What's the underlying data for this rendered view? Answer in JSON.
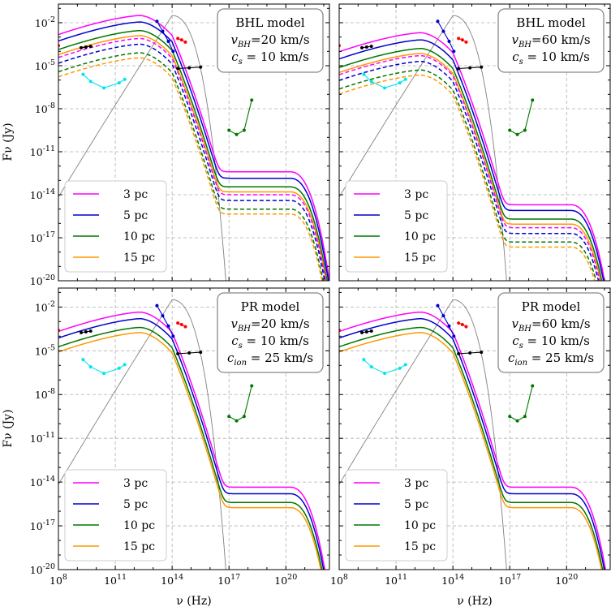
{
  "figure": {
    "xlabel": "ν (Hz)",
    "ylabel": "Fν (Jy)",
    "legend": [
      "3 pc",
      "5 pc",
      "10 pc",
      "15 pc"
    ],
    "colors": {
      "3 pc": "#ff00ff",
      "5 pc": "#0000cc",
      "10 pc": "#007700",
      "15 pc": "#ff9900",
      "blackbody": "#808080"
    }
  },
  "chart_data": [
    {
      "type": "line",
      "panel": "top-left",
      "box": {
        "line1": "BHL model",
        "line2": "vBH=20 km/s",
        "line3": "cs = 10 km/s",
        "line4": ""
      },
      "xscale": "log",
      "yscale": "log",
      "xlim_log10": [
        8,
        22.3
      ],
      "ylim_log10": [
        -20,
        -0.7
      ],
      "xticks": [
        "10^8",
        "10^11",
        "10^14",
        "10^17",
        "10^20"
      ],
      "yticks": [
        "10^-20",
        "10^-17",
        "10^-14",
        "10^-11",
        "10^-8",
        "10^-5",
        "10^-2"
      ],
      "series": [
        {
          "name": "3 pc",
          "style": "solid",
          "peak_log10": -1.5,
          "plateau_log10": -12.4
        },
        {
          "name": "5 pc",
          "style": "solid",
          "peak_log10": -1.95,
          "plateau_log10": -12.85
        },
        {
          "name": "10 pc",
          "style": "solid",
          "peak_log10": -2.55,
          "plateau_log10": -13.45
        },
        {
          "name": "15 pc",
          "style": "solid",
          "peak_log10": -2.9,
          "plateau_log10": -13.8
        },
        {
          "name": "3 pc",
          "style": "dashed",
          "peak_log10": -3.1,
          "plateau_log10": -14.0
        },
        {
          "name": "5 pc",
          "style": "dashed",
          "peak_log10": -3.5,
          "plateau_log10": -14.4
        },
        {
          "name": "10 pc",
          "style": "dashed",
          "peak_log10": -4.1,
          "plateau_log10": -15.0
        },
        {
          "name": "15 pc",
          "style": "dashed",
          "peak_log10": -4.45,
          "plateau_log10": -15.35
        }
      ],
      "blackbody_peak": [
        14.0,
        -1.5
      ]
    },
    {
      "type": "line",
      "panel": "top-right",
      "box": {
        "line1": "BHL model",
        "line2": "vBH=60 km/s",
        "line3": "cs = 10 km/s",
        "line4": ""
      },
      "xscale": "log",
      "yscale": "log",
      "xlim_log10": [
        8,
        22.3
      ],
      "ylim_log10": [
        -20,
        -0.7
      ],
      "xticks": [
        "10^8",
        "10^11",
        "10^14",
        "10^17",
        "10^20"
      ],
      "yticks": [],
      "series": [
        {
          "name": "3 pc",
          "style": "solid",
          "peak_log10": -2.7,
          "plateau_log10": -14.7
        },
        {
          "name": "5 pc",
          "style": "solid",
          "peak_log10": -3.2,
          "plateau_log10": -15.1
        },
        {
          "name": "10 pc",
          "style": "solid",
          "peak_log10": -3.8,
          "plateau_log10": -15.7
        },
        {
          "name": "15 pc",
          "style": "solid",
          "peak_log10": -4.15,
          "plateau_log10": -16.05
        },
        {
          "name": "3 pc",
          "style": "dashed",
          "peak_log10": -4.3,
          "plateau_log10": -16.3
        },
        {
          "name": "5 pc",
          "style": "dashed",
          "peak_log10": -4.7,
          "plateau_log10": -16.7
        },
        {
          "name": "10 pc",
          "style": "dashed",
          "peak_log10": -5.3,
          "plateau_log10": -17.3
        },
        {
          "name": "15 pc",
          "style": "dashed",
          "peak_log10": -5.65,
          "plateau_log10": -17.65
        }
      ],
      "blackbody_peak": [
        14.0,
        -1.5
      ]
    },
    {
      "type": "line",
      "panel": "bottom-left",
      "box": {
        "line1": "PR model",
        "line2": "vBH=20 km/s",
        "line3": "cs = 10 km/s",
        "line4": "cion = 25 km/s"
      },
      "xscale": "log",
      "yscale": "log",
      "xlim_log10": [
        8,
        22.3
      ],
      "ylim_log10": [
        -20,
        -0.7
      ],
      "xticks": [
        "10^8",
        "10^11",
        "10^14",
        "10^17",
        "10^20"
      ],
      "yticks": [
        "10^-20",
        "10^-17",
        "10^-14",
        "10^-11",
        "10^-8",
        "10^-5",
        "10^-2"
      ],
      "series": [
        {
          "name": "3 pc",
          "style": "solid",
          "peak_log10": -2.35,
          "plateau_log10": -14.35
        },
        {
          "name": "5 pc",
          "style": "solid",
          "peak_log10": -2.8,
          "plateau_log10": -14.8
        },
        {
          "name": "10 pc",
          "style": "solid",
          "peak_log10": -3.4,
          "plateau_log10": -15.4
        },
        {
          "name": "15 pc",
          "style": "solid",
          "peak_log10": -3.75,
          "plateau_log10": -15.75
        }
      ],
      "blackbody_peak": [
        14.0,
        -1.5
      ]
    },
    {
      "type": "line",
      "panel": "bottom-right",
      "box": {
        "line1": "PR model",
        "line2": "vBH=60 km/s",
        "line3": "cs = 10 km/s",
        "line4": "cion = 25 km/s"
      },
      "xscale": "log",
      "yscale": "log",
      "xlim_log10": [
        8,
        22.3
      ],
      "ylim_log10": [
        -20,
        -0.7
      ],
      "xticks": [
        "10^8",
        "10^11",
        "10^14",
        "10^17",
        "10^20"
      ],
      "yticks": [],
      "series": [
        {
          "name": "3 pc",
          "style": "solid",
          "peak_log10": -2.35,
          "plateau_log10": -14.35
        },
        {
          "name": "5 pc",
          "style": "solid",
          "peak_log10": -2.8,
          "plateau_log10": -14.8
        },
        {
          "name": "10 pc",
          "style": "solid",
          "peak_log10": -3.4,
          "plateau_log10": -15.4
        },
        {
          "name": "15 pc",
          "style": "solid",
          "peak_log10": -3.75,
          "plateau_log10": -15.75
        }
      ],
      "blackbody_peak": [
        14.0,
        -1.5
      ]
    }
  ],
  "observations": {
    "red_left": [
      [
        8.0,
        -3.6
      ]
    ],
    "black_radio": [
      [
        9.2,
        -3.75
      ],
      [
        9.45,
        -3.7
      ],
      [
        9.7,
        -3.65
      ]
    ],
    "cyan": [
      [
        9.3,
        -5.6
      ],
      [
        9.7,
        -6.1
      ],
      [
        10.4,
        -6.55
      ],
      [
        11.2,
        -6.2
      ],
      [
        11.5,
        -5.95
      ]
    ],
    "blue_ir": [
      [
        13.2,
        -1.9
      ],
      [
        13.5,
        -2.6
      ],
      [
        13.8,
        -3.3
      ],
      [
        14.05,
        -4.0
      ]
    ],
    "red_ir": [
      [
        14.3,
        -3.1
      ],
      [
        14.5,
        -3.2
      ],
      [
        14.7,
        -3.35
      ]
    ],
    "black_uv": [
      [
        14.3,
        -5.2
      ],
      [
        14.9,
        -5.15
      ],
      [
        15.5,
        -5.1
      ]
    ],
    "green_xray": [
      [
        17.0,
        -9.5
      ],
      [
        17.4,
        -9.8
      ],
      [
        17.8,
        -9.5
      ],
      [
        18.2,
        -7.4
      ]
    ]
  }
}
